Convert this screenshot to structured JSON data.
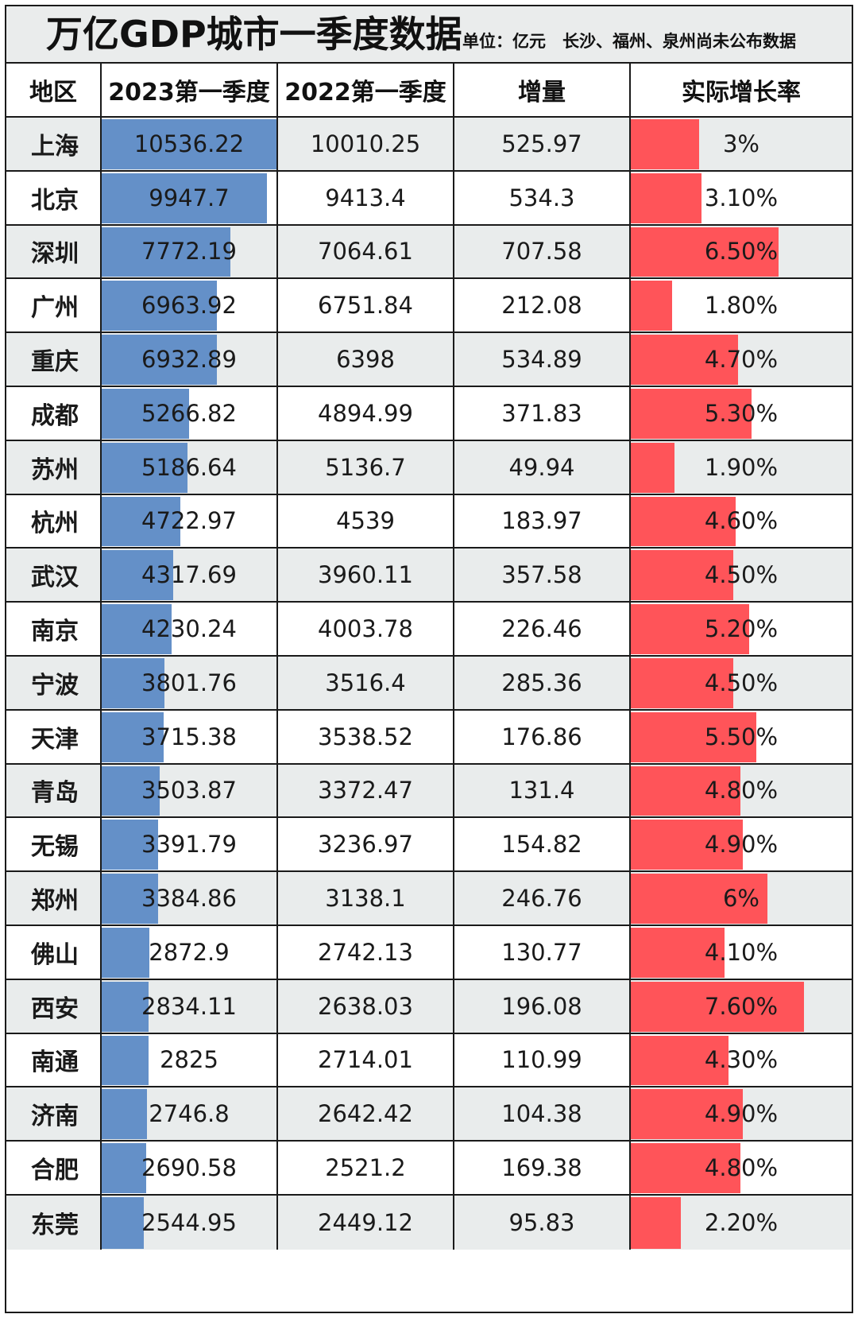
{
  "title": "万亿GDP城市一季度数据",
  "subtitle": "单位：亿元　长沙、福州、泉州尚未公布数据",
  "headers": [
    "地区",
    "2023第一季度",
    "2022第一季度",
    "增量",
    "实际增长率"
  ],
  "colors": {
    "gdp_bar": "#6490c8",
    "growth_bar": "#ff5459",
    "alt_row": "#e9ecec"
  },
  "rows": [
    {
      "city": "上海",
      "gdp2023": "10536.22",
      "gdp2022": "10010.25",
      "increase": "525.97",
      "growth": "3%",
      "growth_value": 3.0
    },
    {
      "city": "北京",
      "gdp2023": "9947.7",
      "gdp2022": "9413.4",
      "increase": "534.3",
      "growth": "3.10%",
      "growth_value": 3.1
    },
    {
      "city": "深圳",
      "gdp2023": "7772.19",
      "gdp2022": "7064.61",
      "increase": "707.58",
      "growth": "6.50%",
      "growth_value": 6.5
    },
    {
      "city": "广州",
      "gdp2023": "6963.92",
      "gdp2022": "6751.84",
      "increase": "212.08",
      "growth": "1.80%",
      "growth_value": 1.8
    },
    {
      "city": "重庆",
      "gdp2023": "6932.89",
      "gdp2022": "6398",
      "increase": "534.89",
      "growth": "4.70%",
      "growth_value": 4.7
    },
    {
      "city": "成都",
      "gdp2023": "5266.82",
      "gdp2022": "4894.99",
      "increase": "371.83",
      "growth": "5.30%",
      "growth_value": 5.3
    },
    {
      "city": "苏州",
      "gdp2023": "5186.64",
      "gdp2022": "5136.7",
      "increase": "49.94",
      "growth": "1.90%",
      "growth_value": 1.9
    },
    {
      "city": "杭州",
      "gdp2023": "4722.97",
      "gdp2022": "4539",
      "increase": "183.97",
      "growth": "4.60%",
      "growth_value": 4.6
    },
    {
      "city": "武汉",
      "gdp2023": "4317.69",
      "gdp2022": "3960.11",
      "increase": "357.58",
      "growth": "4.50%",
      "growth_value": 4.5
    },
    {
      "city": "南京",
      "gdp2023": "4230.24",
      "gdp2022": "4003.78",
      "increase": "226.46",
      "growth": "5.20%",
      "growth_value": 5.2
    },
    {
      "city": "宁波",
      "gdp2023": "3801.76",
      "gdp2022": "3516.4",
      "increase": "285.36",
      "growth": "4.50%",
      "growth_value": 4.5
    },
    {
      "city": "天津",
      "gdp2023": "3715.38",
      "gdp2022": "3538.52",
      "increase": "176.86",
      "growth": "5.50%",
      "growth_value": 5.5
    },
    {
      "city": "青岛",
      "gdp2023": "3503.87",
      "gdp2022": "3372.47",
      "increase": "131.4",
      "growth": "4.80%",
      "growth_value": 4.8
    },
    {
      "city": "无锡",
      "gdp2023": "3391.79",
      "gdp2022": "3236.97",
      "increase": "154.82",
      "growth": "4.90%",
      "growth_value": 4.9
    },
    {
      "city": "郑州",
      "gdp2023": "3384.86",
      "gdp2022": "3138.1",
      "increase": "246.76",
      "growth": "6%",
      "growth_value": 6.0
    },
    {
      "city": "佛山",
      "gdp2023": "2872.9",
      "gdp2022": "2742.13",
      "increase": "130.77",
      "growth": "4.10%",
      "growth_value": 4.1
    },
    {
      "city": "西安",
      "gdp2023": "2834.11",
      "gdp2022": "2638.03",
      "increase": "196.08",
      "growth": "7.60%",
      "growth_value": 7.6
    },
    {
      "city": "南通",
      "gdp2023": "2825",
      "gdp2022": "2714.01",
      "increase": "110.99",
      "growth": "4.30%",
      "growth_value": 4.3
    },
    {
      "city": "济南",
      "gdp2023": "2746.8",
      "gdp2022": "2642.42",
      "increase": "104.38",
      "growth": "4.90%",
      "growth_value": 4.9
    },
    {
      "city": "合肥",
      "gdp2023": "2690.58",
      "gdp2022": "2521.2",
      "increase": "169.38",
      "growth": "4.80%",
      "growth_value": 4.8
    },
    {
      "city": "东莞",
      "gdp2023": "2544.95",
      "gdp2022": "2449.12",
      "increase": "95.83",
      "growth": "2.20%",
      "growth_value": 2.2
    }
  ]
}
